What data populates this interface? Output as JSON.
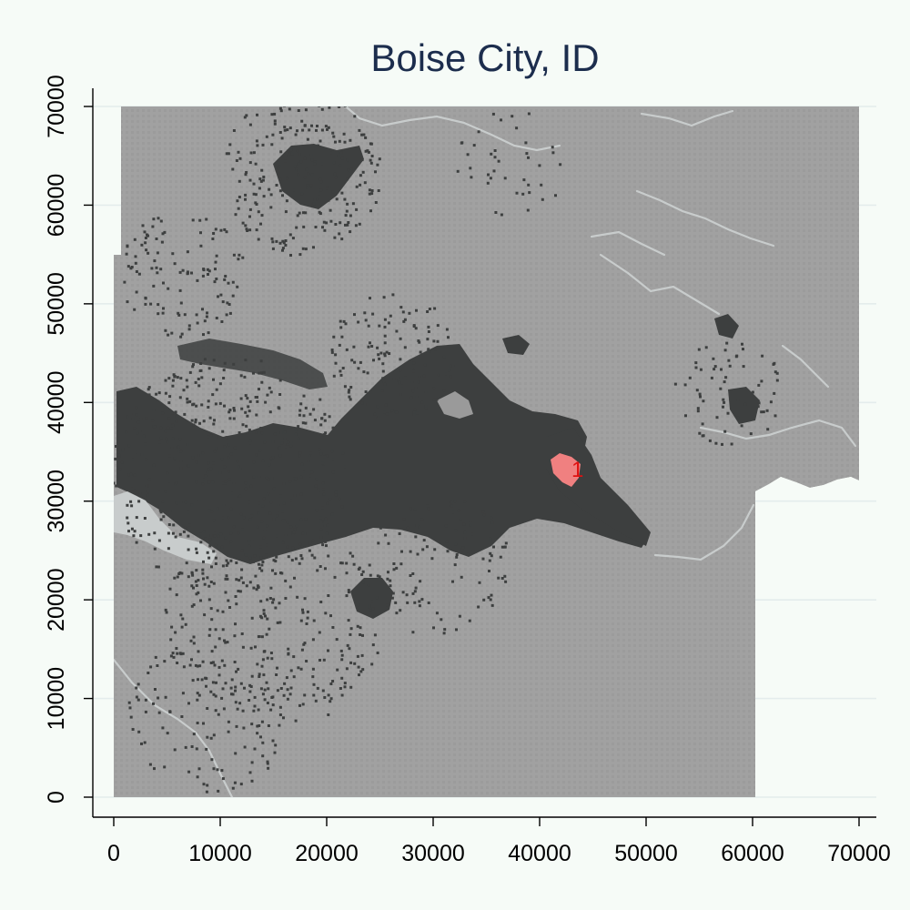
{
  "chart_data": {
    "type": "heatmap",
    "title": "Boise City, ID",
    "xlabel": "",
    "ylabel": "",
    "xlim": [
      0,
      70000
    ],
    "ylim": [
      0,
      70000
    ],
    "x_ticks": [
      0,
      10000,
      20000,
      30000,
      40000,
      50000,
      60000,
      70000
    ],
    "y_ticks": [
      0,
      10000,
      20000,
      30000,
      40000,
      50000,
      60000,
      70000
    ],
    "x_tick_labels": [
      "0",
      "10000",
      "20000",
      "30000",
      "40000",
      "50000",
      "60000",
      "70000"
    ],
    "y_tick_labels": [
      "0",
      "10000",
      "20000",
      "30000",
      "40000",
      "50000",
      "60000",
      "70000"
    ],
    "grid": true,
    "colors": {
      "background": "#a1a1a1",
      "developed": "#3d3f3f",
      "water": "#c8cccc",
      "highlight": "#f08080",
      "marker": "#e01010"
    },
    "highlight": {
      "x": 42500,
      "y": 33000,
      "label": "1"
    }
  }
}
